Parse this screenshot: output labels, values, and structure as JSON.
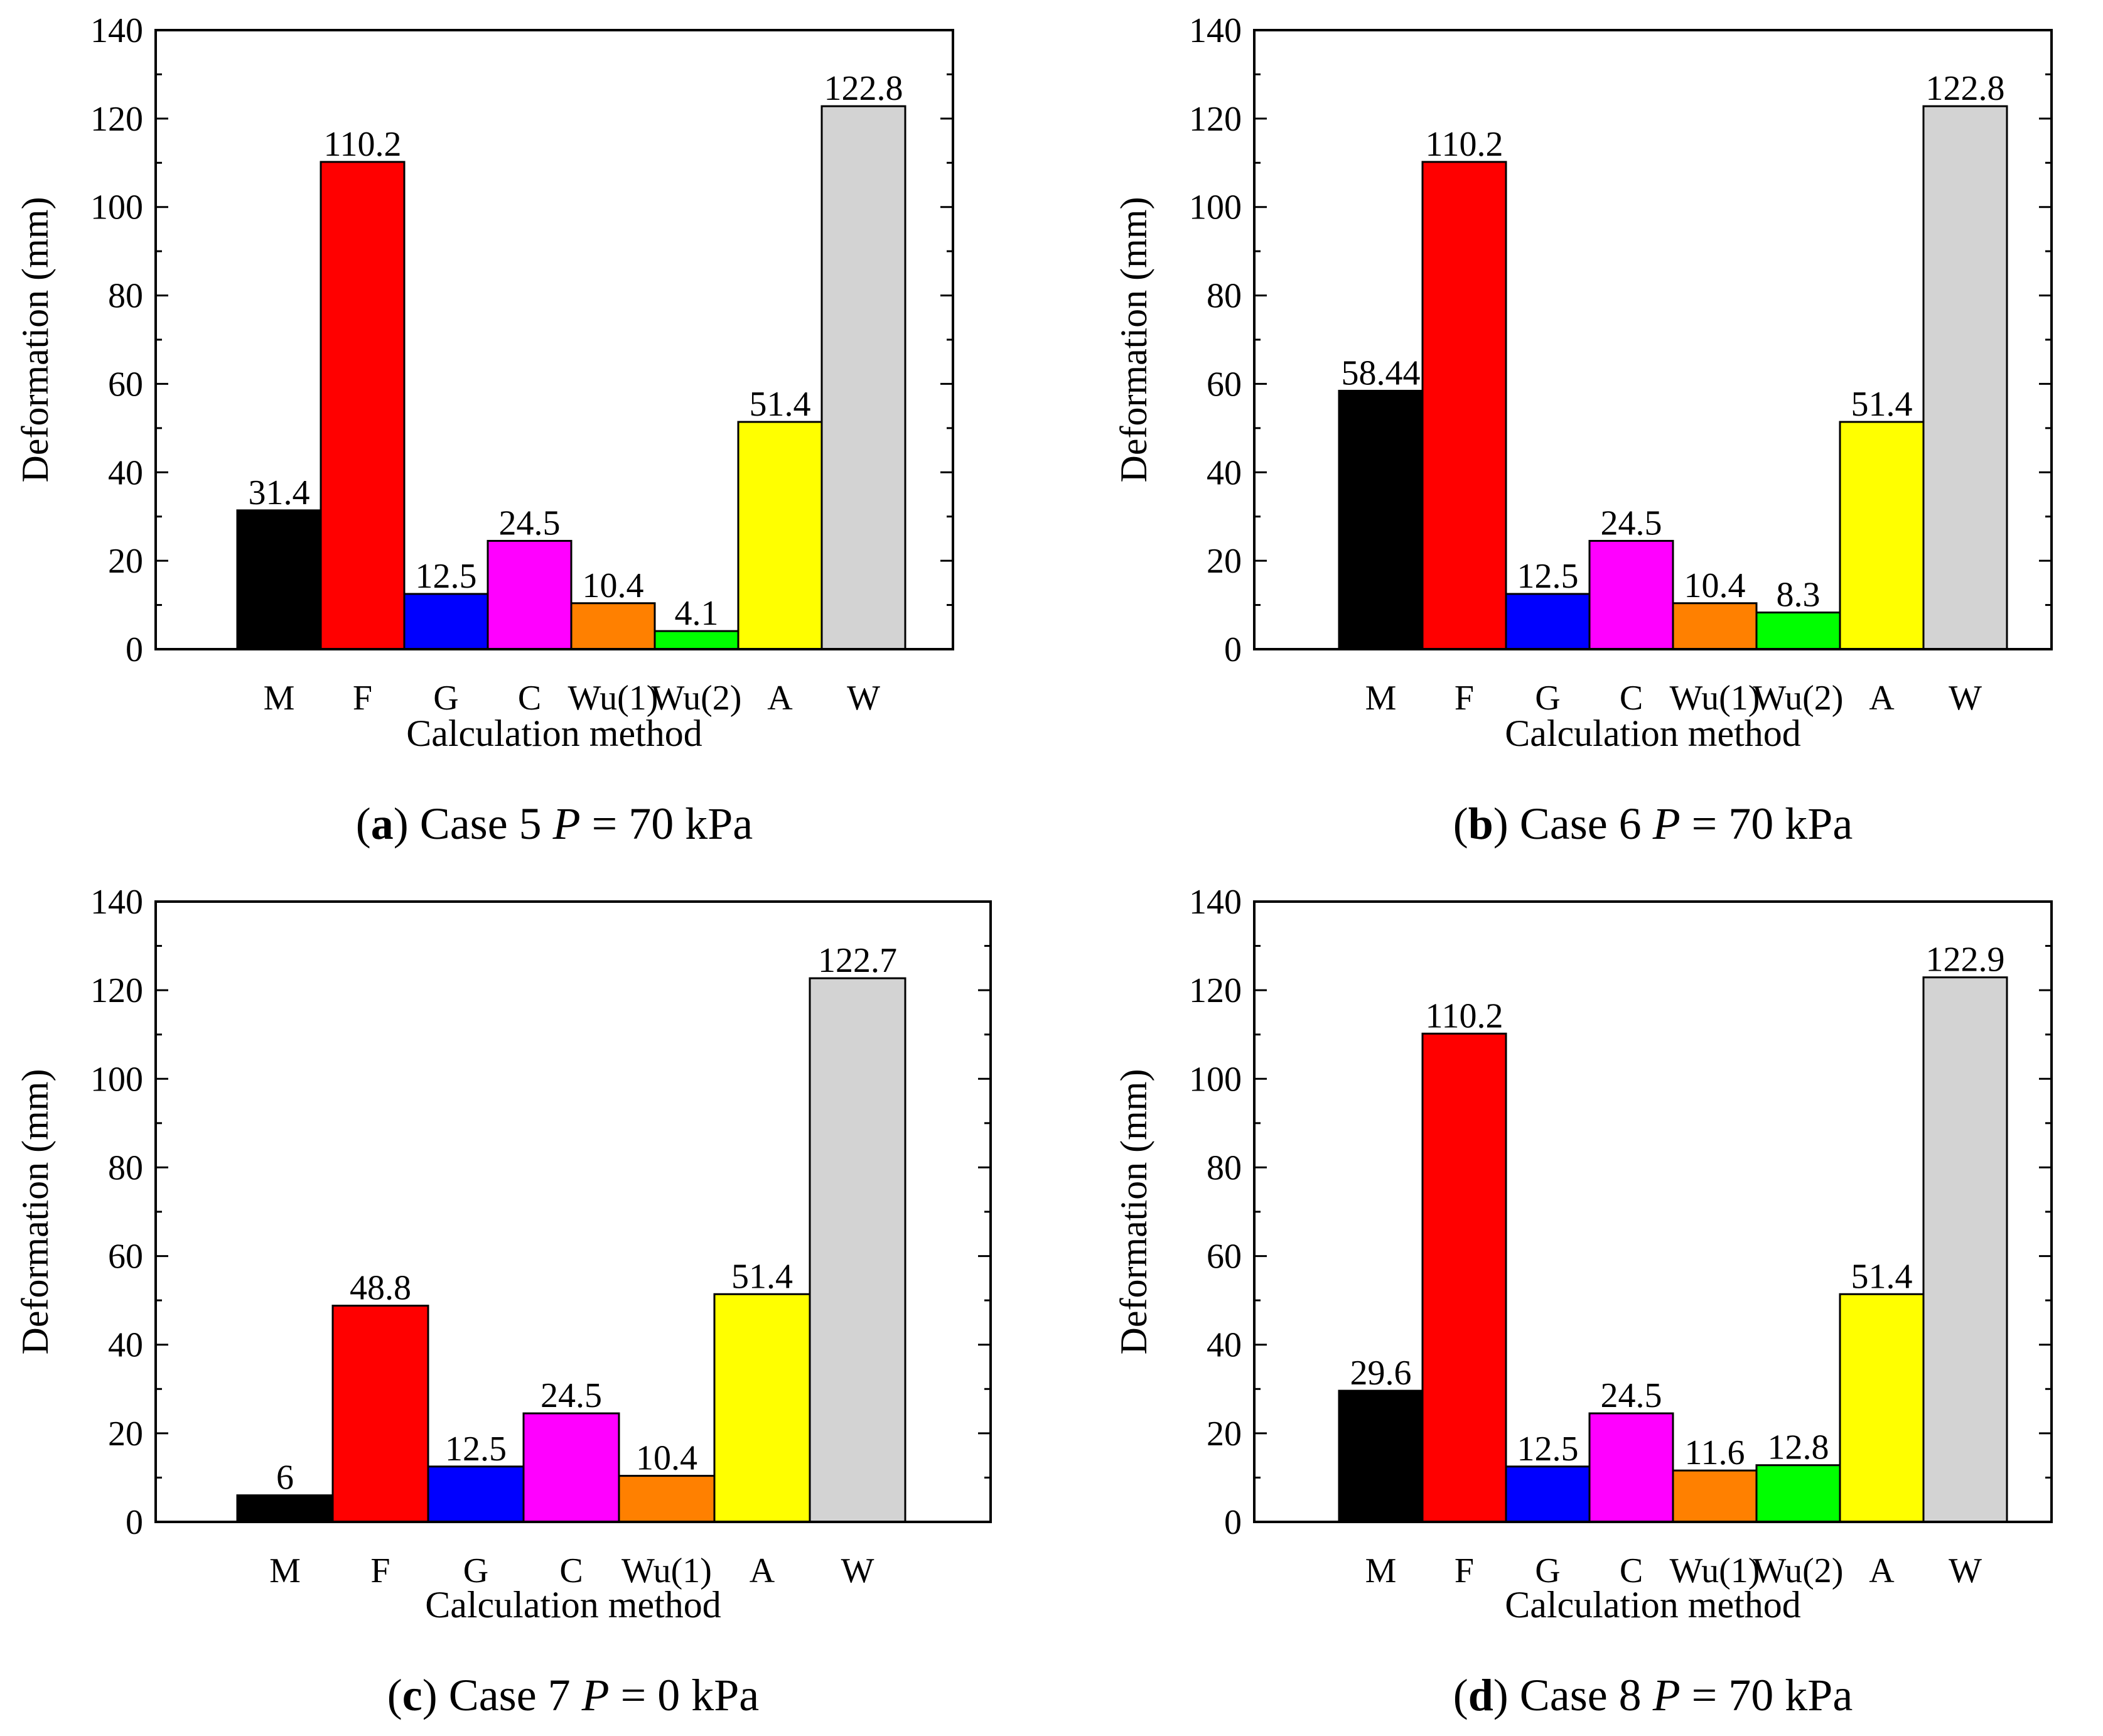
{
  "chart_data": [
    {
      "type": "bar",
      "panel_letter": "a",
      "caption": {
        "letter": "a",
        "prefix": " Case 5 ",
        "p_symbol": "P",
        "suffix": " = 70 kPa"
      },
      "categories": [
        "M",
        "F",
        "G",
        "C",
        "Wu(1)",
        "Wu(2)",
        "A",
        "W"
      ],
      "values": [
        31.4,
        110.2,
        12.5,
        24.5,
        10.4,
        4.1,
        51.4,
        122.8
      ],
      "value_labels": [
        "31.4",
        "110.2",
        "12.5",
        "24.5",
        "10.4",
        "4.1",
        "51.4",
        "122.8"
      ],
      "colors": [
        "#000000",
        "#ff0000",
        "#0000ff",
        "#ff00ff",
        "#ff8000",
        "#00ff00",
        "#ffff00",
        "#d3d3d3"
      ],
      "xlabel": "Calculation method",
      "ylabel": "Deformation (mm)",
      "ylim": [
        0,
        140
      ],
      "yticks": [
        "0",
        "20",
        "40",
        "60",
        "80",
        "100",
        "120",
        "140"
      ],
      "grid": false
    },
    {
      "type": "bar",
      "panel_letter": "b",
      "caption": {
        "letter": "b",
        "prefix": " Case 6 ",
        "p_symbol": "P",
        "suffix": " = 70 kPa"
      },
      "categories": [
        "M",
        "F",
        "G",
        "C",
        "Wu(1)",
        "Wu(2)",
        "A",
        "W"
      ],
      "values": [
        58.44,
        110.2,
        12.5,
        24.5,
        10.4,
        8.3,
        51.4,
        122.8
      ],
      "value_labels": [
        "58.44",
        "110.2",
        "12.5",
        "24.5",
        "10.4",
        "8.3",
        "51.4",
        "122.8"
      ],
      "colors": [
        "#000000",
        "#ff0000",
        "#0000ff",
        "#ff00ff",
        "#ff8000",
        "#00ff00",
        "#ffff00",
        "#d3d3d3"
      ],
      "xlabel": "Calculation method",
      "ylabel": "Deformation (mm)",
      "ylim": [
        0,
        140
      ],
      "yticks": [
        "0",
        "20",
        "40",
        "60",
        "80",
        "100",
        "120",
        "140"
      ],
      "grid": false
    },
    {
      "type": "bar",
      "panel_letter": "c",
      "caption": {
        "letter": "c",
        "prefix": " Case 7 ",
        "p_symbol": "P",
        "suffix": " = 0 kPa"
      },
      "categories": [
        "M",
        "F",
        "G",
        "C",
        "Wu(1)",
        "A",
        "W"
      ],
      "values": [
        6,
        48.8,
        12.5,
        24.5,
        10.4,
        51.4,
        122.7
      ],
      "value_labels": [
        "6",
        "48.8",
        "12.5",
        "24.5",
        "10.4",
        "51.4",
        "122.7"
      ],
      "colors": [
        "#000000",
        "#ff0000",
        "#0000ff",
        "#ff00ff",
        "#ff8000",
        "#ffff00",
        "#d3d3d3"
      ],
      "xlabel": "Calculation method",
      "ylabel": "Deformation (mm)",
      "ylim": [
        0,
        140
      ],
      "yticks": [
        "0",
        "20",
        "40",
        "60",
        "80",
        "100",
        "120",
        "140"
      ],
      "grid": false
    },
    {
      "type": "bar",
      "panel_letter": "d",
      "caption": {
        "letter": "d",
        "prefix": " Case 8 ",
        "p_symbol": "P",
        "suffix": " = 70 kPa"
      },
      "categories": [
        "M",
        "F",
        "G",
        "C",
        "Wu(1)",
        "Wu(2)",
        "A",
        "W"
      ],
      "values": [
        29.6,
        110.2,
        12.5,
        24.5,
        11.6,
        12.8,
        51.4,
        122.9
      ],
      "value_labels": [
        "29.6",
        "110.2",
        "12.5",
        "24.5",
        "11.6",
        "12.8",
        "51.4",
        "122.9"
      ],
      "colors": [
        "#000000",
        "#ff0000",
        "#0000ff",
        "#ff00ff",
        "#ff8000",
        "#00ff00",
        "#ffff00",
        "#d3d3d3"
      ],
      "xlabel": "Calculation method",
      "ylabel": "Deformation (mm)",
      "ylim": [
        0,
        140
      ],
      "yticks": [
        "0",
        "20",
        "40",
        "60",
        "80",
        "100",
        "120",
        "140"
      ],
      "grid": false
    }
  ]
}
